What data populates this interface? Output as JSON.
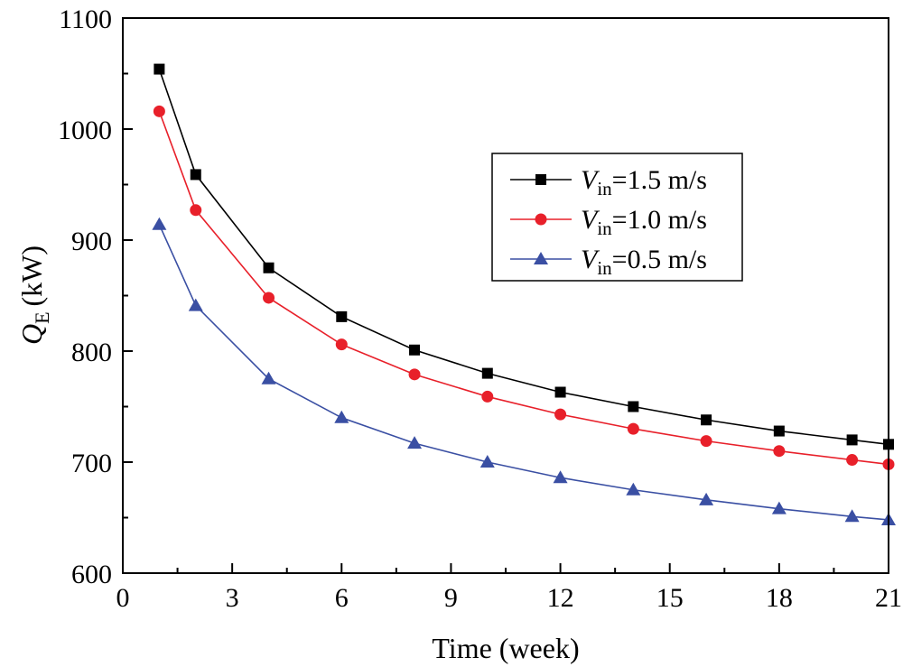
{
  "chart_data": {
    "type": "line",
    "title": "",
    "xlabel": "Time (week)",
    "ylabel": {
      "main": "Q",
      "sub": "E",
      "unit": "(kW)"
    },
    "xlim": [
      0,
      21
    ],
    "ylim": [
      600,
      1100
    ],
    "xticks": [
      0,
      3,
      6,
      9,
      12,
      15,
      18,
      21
    ],
    "xticks_minor": [
      1.5,
      4.5,
      7.5,
      10.5,
      13.5,
      16.5,
      19.5
    ],
    "yticks": [
      600,
      700,
      800,
      900,
      1000,
      1100
    ],
    "yticks_minor": [
      650,
      750,
      850,
      950,
      1050
    ],
    "grid": false,
    "legend_position": "upper-right",
    "x": [
      1,
      2,
      4,
      6,
      8,
      10,
      12,
      14,
      16,
      18,
      20,
      21
    ],
    "series": [
      {
        "name": "Vin=1.5 m/s",
        "label_main": "V",
        "label_sub": "in",
        "label_rest": "=1.5 m/s",
        "color": "#000000",
        "marker": "square",
        "values": [
          1054,
          959,
          875,
          831,
          801,
          780,
          763,
          750,
          738,
          728,
          720,
          716
        ]
      },
      {
        "name": "Vin=1.0 m/s",
        "label_main": "V",
        "label_sub": "in",
        "label_rest": "=1.0 m/s",
        "color": "#e8202a",
        "marker": "circle",
        "values": [
          1016,
          927,
          848,
          806,
          779,
          759,
          743,
          730,
          719,
          710,
          702,
          698
        ]
      },
      {
        "name": "Vin=0.5 m/s",
        "label_main": "V",
        "label_sub": "in",
        "label_rest": "=0.5 m/s",
        "color": "#3a4fa3",
        "marker": "triangle",
        "values": [
          914,
          841,
          775,
          740,
          717,
          700,
          686,
          675,
          666,
          658,
          651,
          648
        ]
      }
    ]
  }
}
